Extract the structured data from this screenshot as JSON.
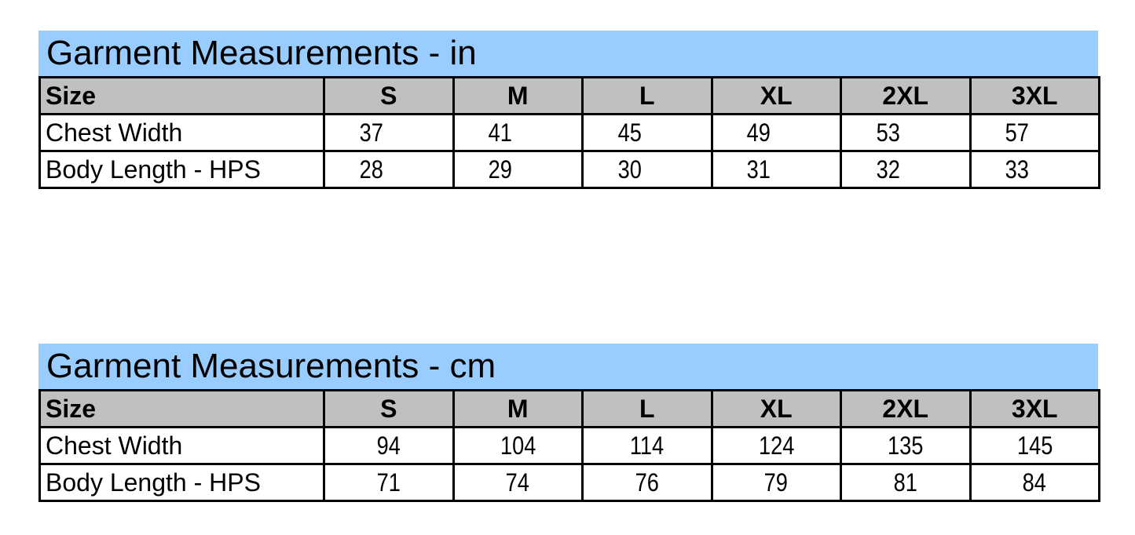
{
  "tables": [
    {
      "title": "Garment Measurements - in",
      "header": [
        "Size",
        "S",
        "M",
        "L",
        "XL",
        "2XL",
        "3XL"
      ],
      "rows": [
        {
          "label": "Chest Width",
          "values": [
            "37",
            "41",
            "45",
            "49",
            "53",
            "57"
          ]
        },
        {
          "label": "Body Length - HPS",
          "values": [
            "28",
            "29",
            "30",
            "31",
            "32",
            "33"
          ]
        }
      ]
    },
    {
      "title": "Garment Measurements - cm",
      "header": [
        "Size",
        "S",
        "M",
        "L",
        "XL",
        "2XL",
        "3XL"
      ],
      "rows": [
        {
          "label": "Chest Width",
          "values": [
            "94",
            "104",
            "114",
            "124",
            "135",
            "145"
          ]
        },
        {
          "label": "Body Length - HPS",
          "values": [
            "71",
            "74",
            "76",
            "79",
            "81",
            "84"
          ]
        }
      ]
    }
  ],
  "colors": {
    "title_bg": "#99ccff",
    "header_bg": "#c0c0c0"
  }
}
